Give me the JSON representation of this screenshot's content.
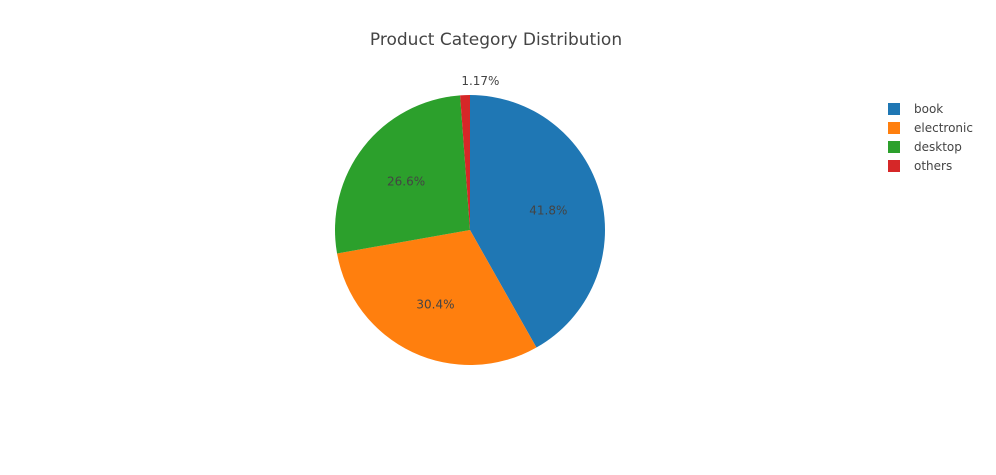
{
  "chart_data": {
    "type": "pie",
    "title": "Product Category Distribution",
    "legend_position": "top-right",
    "slices": [
      {
        "label": "book",
        "value": 41.8,
        "text": "41.8%",
        "color": "#1f77b4"
      },
      {
        "label": "electronic",
        "value": 30.4,
        "text": "30.4%",
        "color": "#ff7f0e"
      },
      {
        "label": "desktop",
        "value": 26.6,
        "text": "26.6%",
        "color": "#2ca02c"
      },
      {
        "label": "others",
        "value": 1.17,
        "text": "1.17%",
        "color": "#d62728"
      }
    ]
  }
}
